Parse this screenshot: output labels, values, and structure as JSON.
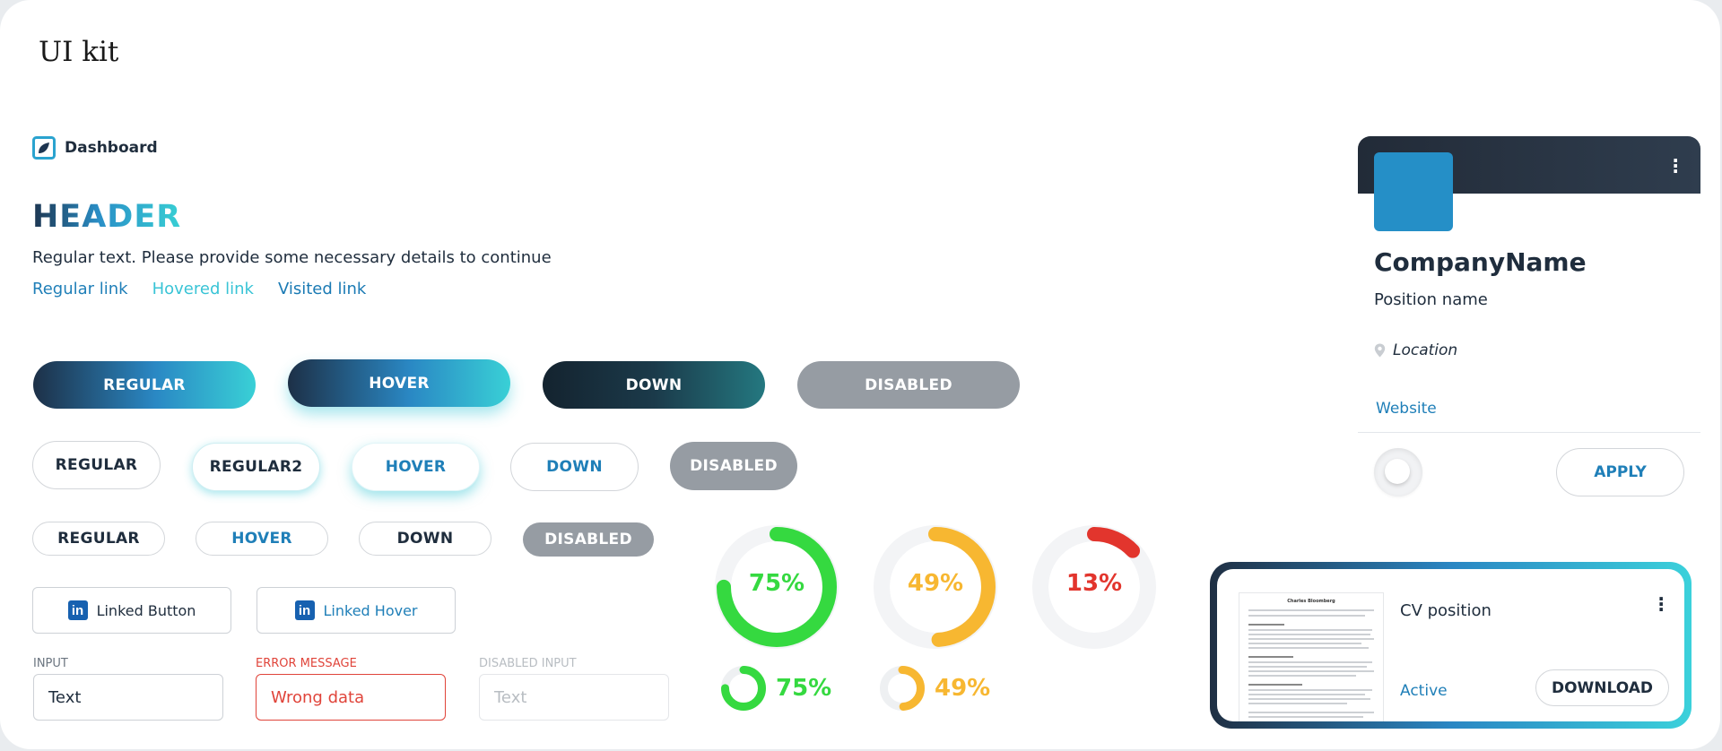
{
  "page": {
    "title": "UI kit"
  },
  "brand": {
    "label": "Dashboard",
    "icon": "dashboard-logo-icon"
  },
  "typography": {
    "header": "HEADER",
    "regular_text": "Regular text. Please provide some necessary details to continue",
    "links": {
      "regular": "Regular link",
      "hovered": "Hovered link",
      "visited": "Visited link"
    }
  },
  "gradient_buttons": {
    "regular": "REGULAR",
    "hover": "HOVER",
    "down": "DOWN",
    "disabled": "DISABLED"
  },
  "outline_buttons": {
    "regular": "REGULAR",
    "regular2": "REGULAR2",
    "hover": "HOVER",
    "down": "DOWN",
    "disabled": "DISABLED"
  },
  "small_buttons": {
    "regular": "REGULAR",
    "hover": "HOVER",
    "down": "DOWN",
    "disabled": "DISABLED"
  },
  "linkedin_buttons": {
    "regular": "Linked Button",
    "hover": "Linked Hover",
    "icon": "linkedin-icon",
    "icon_glyph": "in"
  },
  "inputs": {
    "regular": {
      "label": "INPUT",
      "value": "Text"
    },
    "error": {
      "label": "ERROR MESSAGE",
      "value": "Wrong data"
    },
    "disabled": {
      "label": "DISABLED INPUT",
      "value": "Text"
    }
  },
  "progress": {
    "rings": [
      {
        "value": 75,
        "label": "75%",
        "color": "#35d940"
      },
      {
        "value": 49,
        "label": "49%",
        "color": "#f7b731"
      },
      {
        "value": 13,
        "label": "13%",
        "color": "#e2352d"
      }
    ],
    "mini": [
      {
        "value": 75,
        "label": "75%",
        "color": "#35d940"
      },
      {
        "value": 49,
        "label": "49%",
        "color": "#f7b731"
      }
    ]
  },
  "company_card": {
    "company": "CompanyName",
    "position": "Position name",
    "location": "Location",
    "website": "Website",
    "apply": "APPLY",
    "menu_icon": "more-vertical-icon",
    "location_icon": "map-pin-icon",
    "logo_color": "#258fc7"
  },
  "cv_card": {
    "title": "CV position",
    "status": "Active",
    "download": "DOWNLOAD",
    "thumb_title": "Charles Bloomberg"
  },
  "colors": {
    "primary": "#1f7fb8",
    "accent": "#39c4d6",
    "dark": "#1f2d3d",
    "error": "#e0443a",
    "disabled": "#969ca3"
  }
}
